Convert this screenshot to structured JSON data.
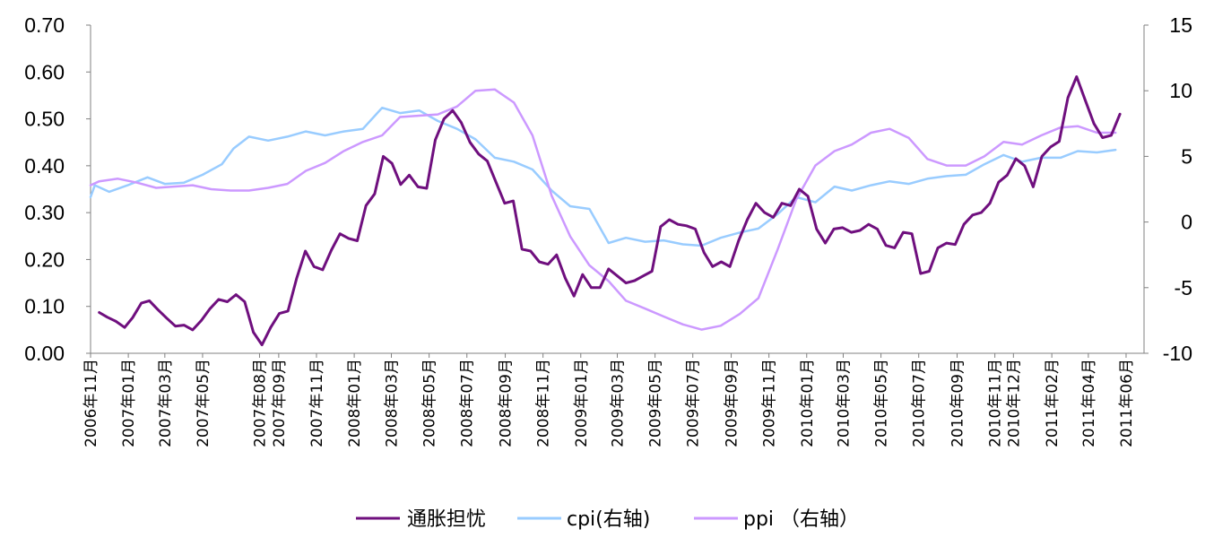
{
  "chart_data": {
    "type": "line",
    "title": "",
    "xlabel": "",
    "ylabel": "",
    "y_left": {
      "range": [
        0,
        0.7
      ],
      "ticks": [
        "0.00",
        "0.10",
        "0.20",
        "0.30",
        "0.40",
        "0.50",
        "0.60",
        "0.70"
      ]
    },
    "y_right": {
      "range": [
        -10,
        15
      ],
      "ticks": [
        "-10",
        "-5",
        "0",
        "5",
        "10",
        "15"
      ]
    },
    "x_range": [
      "2006-11-01",
      "2011-06-30"
    ],
    "x_ticks": [
      {
        "date": "2006-11-01",
        "label": "2006年11月"
      },
      {
        "date": "2007-01-01",
        "label": "2007年01月"
      },
      {
        "date": "2007-03-01",
        "label": "2007年03月"
      },
      {
        "date": "2007-05-01",
        "label": "2007年05月"
      },
      {
        "date": "2007-08-01",
        "label": "2007年08月"
      },
      {
        "date": "2007-09-01",
        "label": "2007年09月"
      },
      {
        "date": "2007-11-01",
        "label": "2007年11月"
      },
      {
        "date": "2008-01-01",
        "label": "2008年01月"
      },
      {
        "date": "2008-03-01",
        "label": "2008年03月"
      },
      {
        "date": "2008-05-01",
        "label": "2008年05月"
      },
      {
        "date": "2008-07-01",
        "label": "2008年07月"
      },
      {
        "date": "2008-09-01",
        "label": "2008年09月"
      },
      {
        "date": "2008-11-01",
        "label": "2008年11月"
      },
      {
        "date": "2009-01-01",
        "label": "2009年01月"
      },
      {
        "date": "2009-03-01",
        "label": "2009年03月"
      },
      {
        "date": "2009-05-01",
        "label": "2009年05月"
      },
      {
        "date": "2009-07-01",
        "label": "2009年07月"
      },
      {
        "date": "2009-09-01",
        "label": "2009年09月"
      },
      {
        "date": "2009-11-01",
        "label": "2009年11月"
      },
      {
        "date": "2010-01-01",
        "label": "2010年01月"
      },
      {
        "date": "2010-03-01",
        "label": "2010年03月"
      },
      {
        "date": "2010-05-01",
        "label": "2010年05月"
      },
      {
        "date": "2010-07-01",
        "label": "2010年07月"
      },
      {
        "date": "2010-09-01",
        "label": "2010年09月"
      },
      {
        "date": "2010-11-01",
        "label": "2010年11月"
      },
      {
        "date": "2010-12-01",
        "label": "2010年12月"
      },
      {
        "date": "2011-02-01",
        "label": "2011年02月"
      },
      {
        "date": "2011-04-01",
        "label": "2011年04月"
      },
      {
        "date": "2011-06-01",
        "label": "2011年06月"
      }
    ],
    "grid": false,
    "legend_position": "bottom",
    "series": [
      {
        "name": "通胀担忧",
        "axis": "left",
        "color": "#6f0f7e",
        "points": [
          [
            "2006-11-15",
            0.087
          ],
          [
            "2006-11-28",
            0.077
          ],
          [
            "2006-12-12",
            0.068
          ],
          [
            "2006-12-26",
            0.055
          ],
          [
            "2007-01-08",
            0.076
          ],
          [
            "2007-01-22",
            0.107
          ],
          [
            "2007-02-04",
            0.112
          ],
          [
            "2007-02-18",
            0.093
          ],
          [
            "2007-03-04",
            0.075
          ],
          [
            "2007-03-18",
            0.058
          ],
          [
            "2007-04-01",
            0.06
          ],
          [
            "2007-04-15",
            0.05
          ],
          [
            "2007-04-29",
            0.07
          ],
          [
            "2007-05-13",
            0.095
          ],
          [
            "2007-05-27",
            0.115
          ],
          [
            "2007-06-10",
            0.11
          ],
          [
            "2007-06-24",
            0.125
          ],
          [
            "2007-07-08",
            0.11
          ],
          [
            "2007-07-22",
            0.045
          ],
          [
            "2007-08-05",
            0.018
          ],
          [
            "2007-08-19",
            0.055
          ],
          [
            "2007-09-02",
            0.085
          ],
          [
            "2007-09-16",
            0.09
          ],
          [
            "2007-09-30",
            0.16
          ],
          [
            "2007-10-14",
            0.218
          ],
          [
            "2007-10-28",
            0.185
          ],
          [
            "2007-11-11",
            0.178
          ],
          [
            "2007-11-25",
            0.22
          ],
          [
            "2007-12-09",
            0.255
          ],
          [
            "2007-12-23",
            0.245
          ],
          [
            "2008-01-06",
            0.24
          ],
          [
            "2008-01-20",
            0.315
          ],
          [
            "2008-02-03",
            0.34
          ],
          [
            "2008-02-17",
            0.42
          ],
          [
            "2008-03-02",
            0.405
          ],
          [
            "2008-03-16",
            0.36
          ],
          [
            "2008-03-30",
            0.38
          ],
          [
            "2008-04-13",
            0.355
          ],
          [
            "2008-04-27",
            0.352
          ],
          [
            "2008-05-11",
            0.455
          ],
          [
            "2008-05-25",
            0.5
          ],
          [
            "2008-06-08",
            0.518
          ],
          [
            "2008-06-22",
            0.492
          ],
          [
            "2008-07-06",
            0.45
          ],
          [
            "2008-07-20",
            0.425
          ],
          [
            "2008-08-03",
            0.41
          ],
          [
            "2008-08-17",
            0.365
          ],
          [
            "2008-08-31",
            0.32
          ],
          [
            "2008-09-14",
            0.325
          ],
          [
            "2008-09-28",
            0.222
          ],
          [
            "2008-10-12",
            0.218
          ],
          [
            "2008-10-26",
            0.195
          ],
          [
            "2008-11-09",
            0.19
          ],
          [
            "2008-11-23",
            0.21
          ],
          [
            "2008-12-07",
            0.16
          ],
          [
            "2008-12-21",
            0.122
          ],
          [
            "2009-01-04",
            0.168
          ],
          [
            "2009-01-18",
            0.14
          ],
          [
            "2009-02-01",
            0.14
          ],
          [
            "2009-02-15",
            0.18
          ],
          [
            "2009-03-01",
            0.165
          ],
          [
            "2009-03-15",
            0.15
          ],
          [
            "2009-03-29",
            0.155
          ],
          [
            "2009-04-12",
            0.165
          ],
          [
            "2009-04-26",
            0.175
          ],
          [
            "2009-05-10",
            0.27
          ],
          [
            "2009-05-24",
            0.285
          ],
          [
            "2009-06-07",
            0.275
          ],
          [
            "2009-06-21",
            0.272
          ],
          [
            "2009-07-05",
            0.265
          ],
          [
            "2009-07-19",
            0.215
          ],
          [
            "2009-08-02",
            0.185
          ],
          [
            "2009-08-16",
            0.195
          ],
          [
            "2009-08-30",
            0.185
          ],
          [
            "2009-09-13",
            0.24
          ],
          [
            "2009-09-27",
            0.285
          ],
          [
            "2009-10-11",
            0.32
          ],
          [
            "2009-10-25",
            0.3
          ],
          [
            "2009-11-08",
            0.29
          ],
          [
            "2009-11-22",
            0.32
          ],
          [
            "2009-12-06",
            0.315
          ],
          [
            "2009-12-20",
            0.35
          ],
          [
            "2010-01-03",
            0.335
          ],
          [
            "2010-01-17",
            0.265
          ],
          [
            "2010-01-31",
            0.235
          ],
          [
            "2010-02-14",
            0.265
          ],
          [
            "2010-02-28",
            0.268
          ],
          [
            "2010-03-14",
            0.258
          ],
          [
            "2010-03-28",
            0.262
          ],
          [
            "2010-04-11",
            0.275
          ],
          [
            "2010-04-25",
            0.265
          ],
          [
            "2010-05-09",
            0.23
          ],
          [
            "2010-05-23",
            0.225
          ],
          [
            "2010-06-06",
            0.258
          ],
          [
            "2010-06-20",
            0.255
          ],
          [
            "2010-07-04",
            0.17
          ],
          [
            "2010-07-18",
            0.175
          ],
          [
            "2010-08-01",
            0.225
          ],
          [
            "2010-08-15",
            0.235
          ],
          [
            "2010-08-29",
            0.232
          ],
          [
            "2010-09-12",
            0.275
          ],
          [
            "2010-09-26",
            0.295
          ],
          [
            "2010-10-10",
            0.3
          ],
          [
            "2010-10-24",
            0.32
          ],
          [
            "2010-11-07",
            0.365
          ],
          [
            "2010-11-21",
            0.38
          ],
          [
            "2010-12-05",
            0.415
          ],
          [
            "2010-12-19",
            0.4
          ],
          [
            "2011-01-02",
            0.355
          ],
          [
            "2011-01-16",
            0.42
          ],
          [
            "2011-01-30",
            0.44
          ],
          [
            "2011-02-13",
            0.452
          ],
          [
            "2011-02-27",
            0.545
          ],
          [
            "2011-03-13",
            0.59
          ],
          [
            "2011-03-27",
            0.54
          ],
          [
            "2011-04-10",
            0.49
          ],
          [
            "2011-04-24",
            0.46
          ],
          [
            "2011-05-08",
            0.465
          ],
          [
            "2011-05-22",
            0.51
          ]
        ]
      },
      {
        "name": "cpi(右轴)",
        "axis": "right",
        "color": "#99ccff",
        "points": [
          [
            "2006-11-01",
            1.9
          ],
          [
            "2006-11-08",
            2.8
          ],
          [
            "2006-12-01",
            2.3
          ],
          [
            "2006-12-31",
            2.8
          ],
          [
            "2007-02-01",
            3.4
          ],
          [
            "2007-03-01",
            2.9
          ],
          [
            "2007-04-01",
            3.0
          ],
          [
            "2007-05-01",
            3.6
          ],
          [
            "2007-06-01",
            4.4
          ],
          [
            "2007-06-20",
            5.6
          ],
          [
            "2007-07-15",
            6.5
          ],
          [
            "2007-08-15",
            6.2
          ],
          [
            "2007-09-15",
            6.5
          ],
          [
            "2007-10-15",
            6.9
          ],
          [
            "2007-11-15",
            6.6
          ],
          [
            "2007-12-15",
            6.9
          ],
          [
            "2008-01-15",
            7.1
          ],
          [
            "2008-02-15",
            8.7
          ],
          [
            "2008-03-15",
            8.3
          ],
          [
            "2008-04-15",
            8.5
          ],
          [
            "2008-05-15",
            7.7
          ],
          [
            "2008-06-15",
            7.1
          ],
          [
            "2008-07-15",
            6.3
          ],
          [
            "2008-08-15",
            4.9
          ],
          [
            "2008-09-15",
            4.6
          ],
          [
            "2008-10-15",
            4.0
          ],
          [
            "2008-11-15",
            2.4
          ],
          [
            "2008-12-15",
            1.2
          ],
          [
            "2009-01-15",
            1.0
          ],
          [
            "2009-02-15",
            -1.6
          ],
          [
            "2009-03-15",
            -1.2
          ],
          [
            "2009-04-15",
            -1.5
          ],
          [
            "2009-05-15",
            -1.4
          ],
          [
            "2009-06-15",
            -1.7
          ],
          [
            "2009-07-15",
            -1.8
          ],
          [
            "2009-08-15",
            -1.2
          ],
          [
            "2009-09-15",
            -0.8
          ],
          [
            "2009-10-15",
            -0.5
          ],
          [
            "2009-11-15",
            0.6
          ],
          [
            "2009-12-15",
            1.9
          ],
          [
            "2010-01-15",
            1.5
          ],
          [
            "2010-02-15",
            2.7
          ],
          [
            "2010-03-15",
            2.4
          ],
          [
            "2010-04-15",
            2.8
          ],
          [
            "2010-05-15",
            3.1
          ],
          [
            "2010-06-15",
            2.9
          ],
          [
            "2010-07-15",
            3.3
          ],
          [
            "2010-08-15",
            3.5
          ],
          [
            "2010-09-15",
            3.6
          ],
          [
            "2010-10-15",
            4.4
          ],
          [
            "2010-11-15",
            5.1
          ],
          [
            "2010-12-15",
            4.6
          ],
          [
            "2011-01-15",
            4.9
          ],
          [
            "2011-02-15",
            4.9
          ],
          [
            "2011-03-15",
            5.4
          ],
          [
            "2011-04-15",
            5.3
          ],
          [
            "2011-05-15",
            5.5
          ]
        ]
      },
      {
        "name": "ppi （右轴）",
        "axis": "right",
        "color": "#cc99ff",
        "points": [
          [
            "2006-11-01",
            2.8
          ],
          [
            "2006-11-15",
            3.1
          ],
          [
            "2006-12-15",
            3.3
          ],
          [
            "2007-01-15",
            3.0
          ],
          [
            "2007-02-15",
            2.6
          ],
          [
            "2007-03-15",
            2.7
          ],
          [
            "2007-04-15",
            2.8
          ],
          [
            "2007-05-15",
            2.5
          ],
          [
            "2007-06-15",
            2.4
          ],
          [
            "2007-07-15",
            2.4
          ],
          [
            "2007-08-15",
            2.6
          ],
          [
            "2007-09-15",
            2.9
          ],
          [
            "2007-10-15",
            3.9
          ],
          [
            "2007-11-15",
            4.5
          ],
          [
            "2007-12-15",
            5.4
          ],
          [
            "2008-01-15",
            6.1
          ],
          [
            "2008-02-15",
            6.6
          ],
          [
            "2008-03-15",
            8.0
          ],
          [
            "2008-04-15",
            8.1
          ],
          [
            "2008-05-15",
            8.2
          ],
          [
            "2008-06-15",
            8.8
          ],
          [
            "2008-07-15",
            10.0
          ],
          [
            "2008-08-15",
            10.1
          ],
          [
            "2008-09-15",
            9.1
          ],
          [
            "2008-10-15",
            6.6
          ],
          [
            "2008-11-15",
            2.0
          ],
          [
            "2008-12-15",
            -1.1
          ],
          [
            "2009-01-15",
            -3.3
          ],
          [
            "2009-02-15",
            -4.5
          ],
          [
            "2009-03-15",
            -6.0
          ],
          [
            "2009-04-15",
            -6.6
          ],
          [
            "2009-05-15",
            -7.2
          ],
          [
            "2009-06-15",
            -7.8
          ],
          [
            "2009-07-15",
            -8.2
          ],
          [
            "2009-08-15",
            -7.9
          ],
          [
            "2009-09-15",
            -7.0
          ],
          [
            "2009-10-15",
            -5.8
          ],
          [
            "2009-11-15",
            -2.1
          ],
          [
            "2009-12-15",
            1.7
          ],
          [
            "2010-01-15",
            4.3
          ],
          [
            "2010-02-15",
            5.4
          ],
          [
            "2010-03-15",
            5.9
          ],
          [
            "2010-04-15",
            6.8
          ],
          [
            "2010-05-15",
            7.1
          ],
          [
            "2010-06-15",
            6.4
          ],
          [
            "2010-07-15",
            4.8
          ],
          [
            "2010-08-15",
            4.3
          ],
          [
            "2010-09-15",
            4.3
          ],
          [
            "2010-10-15",
            5.0
          ],
          [
            "2010-11-15",
            6.1
          ],
          [
            "2010-12-15",
            5.9
          ],
          [
            "2011-01-15",
            6.6
          ],
          [
            "2011-02-15",
            7.2
          ],
          [
            "2011-03-15",
            7.3
          ],
          [
            "2011-04-15",
            6.8
          ],
          [
            "2011-05-15",
            6.8
          ]
        ]
      }
    ]
  }
}
